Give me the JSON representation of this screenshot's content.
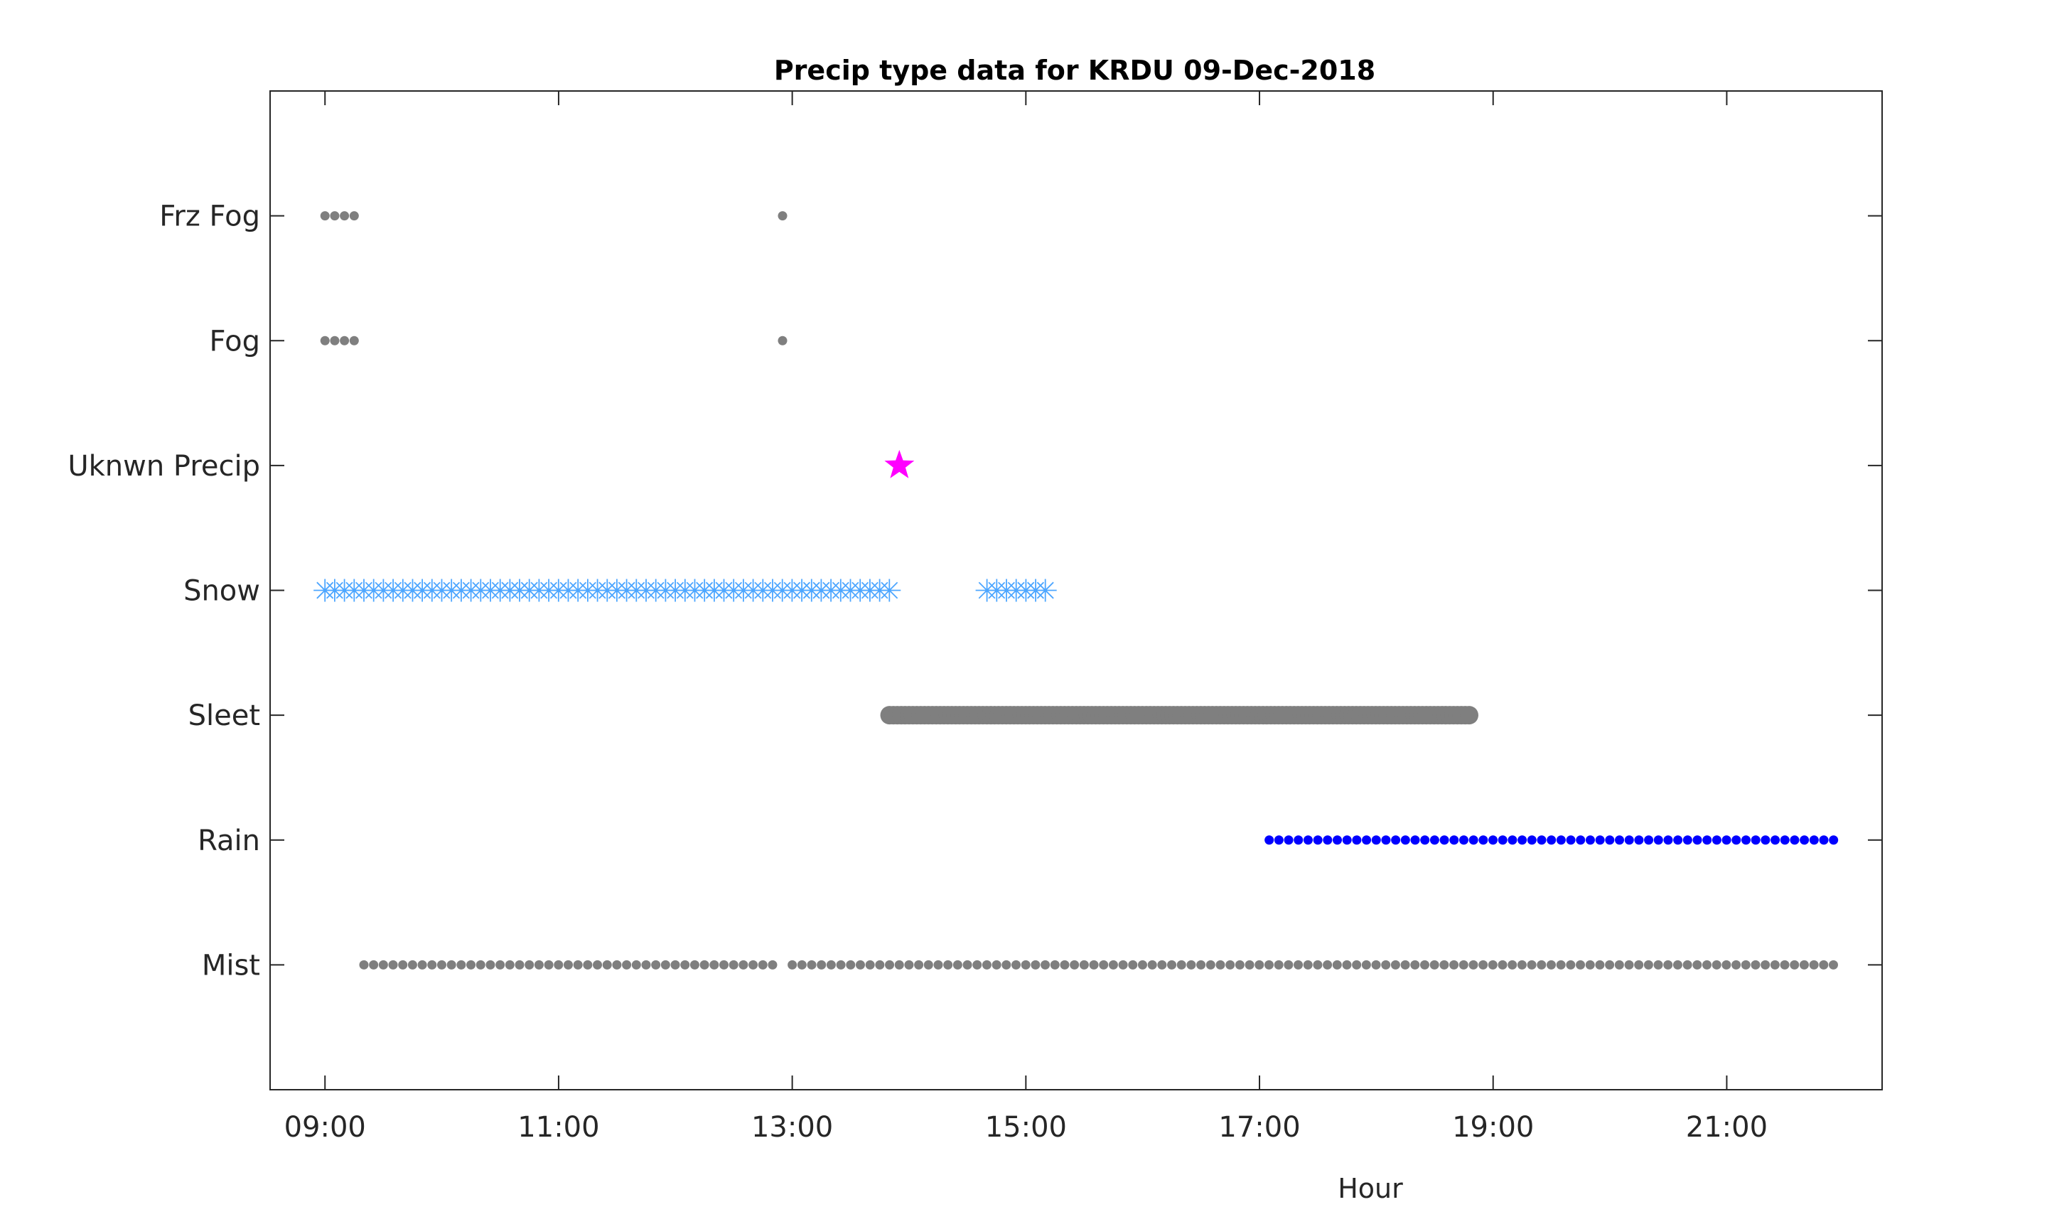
{
  "chart_data": {
    "type": "scatter",
    "title": "Precip type data for KRDU 09-Dec-2018",
    "xlabel": "Hour",
    "ylabel": "",
    "x_unit": "hour of day",
    "xlim": [
      8.53,
      22.33
    ],
    "xticks": [
      9,
      11,
      13,
      15,
      17,
      19,
      21
    ],
    "xtick_labels": [
      "09:00",
      "11:00",
      "13:00",
      "15:00",
      "17:00",
      "19:00",
      "21:00"
    ],
    "categories": [
      "Mist",
      "Rain",
      "Sleet",
      "Snow",
      "Uknwn Precip",
      "Fog",
      "Frz Fog"
    ],
    "ylim": [
      0,
      8
    ],
    "grid": false,
    "series": [
      {
        "category": "Frz Fog",
        "marker": "dot",
        "color": "#7f7f7f",
        "segments": [
          {
            "start": 9.0,
            "end": 9.25,
            "step": 0.0833
          },
          {
            "start": 12.917,
            "end": 12.917,
            "step": 0.0833
          }
        ]
      },
      {
        "category": "Fog",
        "marker": "dot",
        "color": "#7f7f7f",
        "segments": [
          {
            "start": 9.0,
            "end": 9.25,
            "step": 0.0833
          },
          {
            "start": 12.917,
            "end": 12.917,
            "step": 0.0833
          }
        ]
      },
      {
        "category": "Uknwn Precip",
        "marker": "star",
        "color": "#ff00ff",
        "segments": [
          {
            "start": 13.917,
            "end": 13.917,
            "step": 0.0833
          }
        ]
      },
      {
        "category": "Snow",
        "marker": "asterisk",
        "color": "#4da6ff",
        "segments": [
          {
            "start": 9.0,
            "end": 13.867,
            "step": 0.0833
          },
          {
            "start": 14.667,
            "end": 15.2,
            "step": 0.0833
          }
        ]
      },
      {
        "category": "Sleet",
        "marker": "big-dot",
        "color": "#7f7f7f",
        "segments": [
          {
            "start": 13.833,
            "end": 18.8,
            "step": 0.0333
          }
        ]
      },
      {
        "category": "Rain",
        "marker": "dot",
        "color": "#0000ff",
        "segments": [
          {
            "start": 17.083,
            "end": 21.917,
            "step": 0.0833
          }
        ]
      },
      {
        "category": "Mist",
        "marker": "dot",
        "color": "#7f7f7f",
        "segments": [
          {
            "start": 9.333,
            "end": 12.833,
            "step": 0.0833
          },
          {
            "start": 13.0,
            "end": 21.917,
            "step": 0.0833
          }
        ]
      }
    ]
  }
}
